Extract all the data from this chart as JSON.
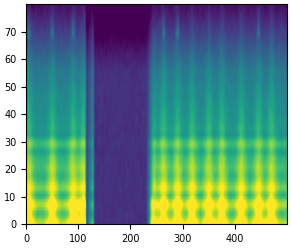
{
  "figsize": [
    2.91,
    2.48
  ],
  "dpi": 100,
  "cmap": "viridis",
  "n_mels": 80,
  "n_frames": 500,
  "pause_start": 130,
  "pause_end": 230,
  "seed": 7,
  "xlim": [
    0,
    500
  ],
  "ylim": [
    0,
    80
  ],
  "xticks": [
    0,
    100,
    200,
    300,
    400
  ],
  "yticks": [
    0,
    10,
    20,
    30,
    40,
    50,
    60,
    70
  ],
  "tick_fontsize": 7,
  "vmin": -12,
  "vmax": 2,
  "background_color": "#ffffff"
}
